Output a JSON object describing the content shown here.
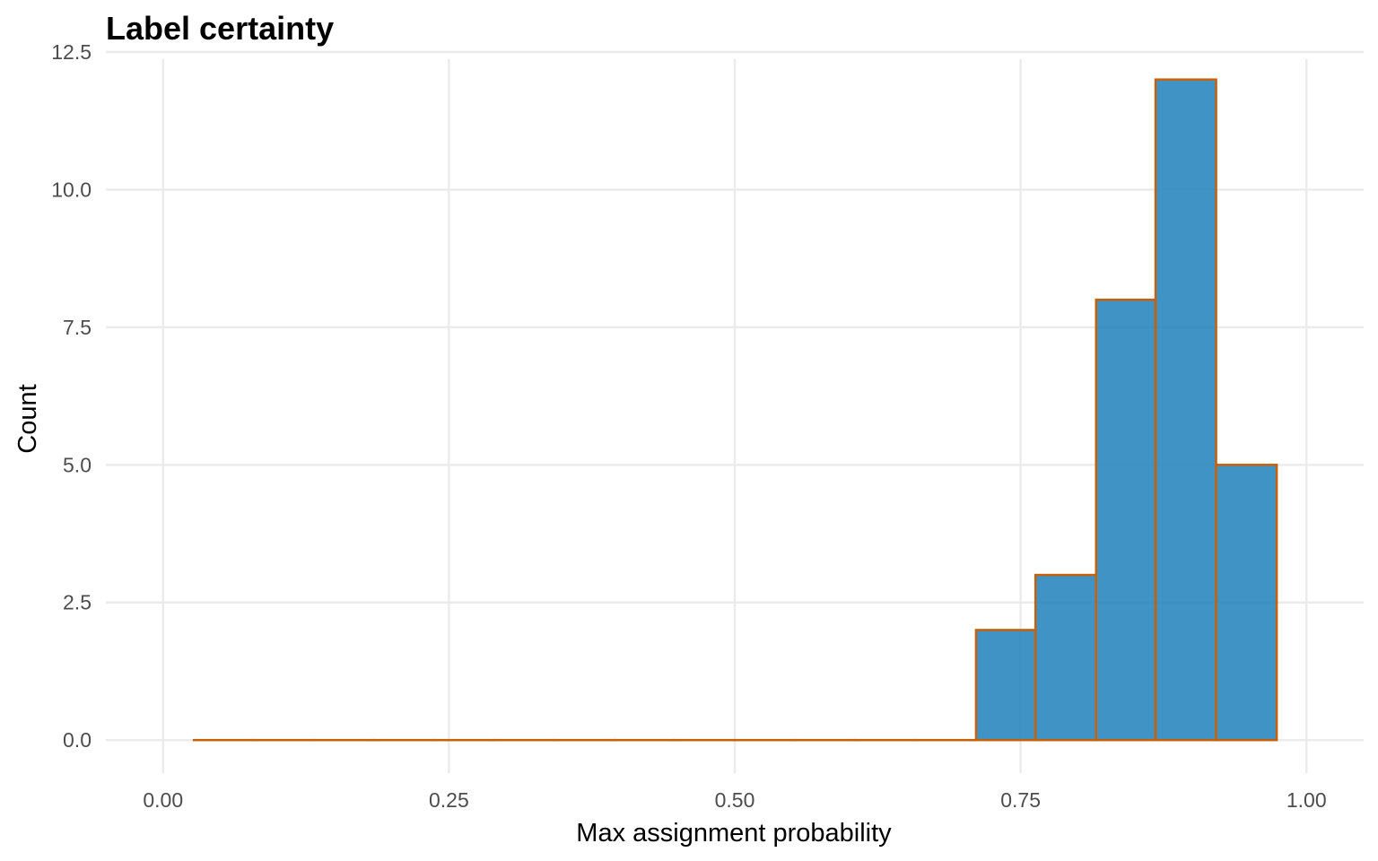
{
  "chart_data": {
    "type": "bar",
    "title": "Label certainty",
    "xlabel": "Max assignment probability",
    "ylabel": "Count",
    "xlim": [
      -0.05,
      1.05
    ],
    "ylim": [
      -0.6,
      12.5
    ],
    "x_ticks": [
      0,
      0.25,
      0.5,
      0.75,
      1
    ],
    "x_tick_labels": [
      "0.00",
      "0.25",
      "0.50",
      "0.75",
      "1.00"
    ],
    "y_ticks": [
      0,
      2.5,
      5,
      7.5,
      10,
      12.5
    ],
    "y_tick_labels": [
      "0.0",
      "2.5",
      "5.0",
      "7.5",
      "10.0",
      "12.5"
    ],
    "grid": true,
    "bin_width": 0.0526,
    "bins": [
      {
        "x0": 0.027,
        "x1": 0.079,
        "count": 0
      },
      {
        "x0": 0.079,
        "x1": 0.132,
        "count": 0
      },
      {
        "x0": 0.132,
        "x1": 0.184,
        "count": 0
      },
      {
        "x0": 0.184,
        "x1": 0.237,
        "count": 0
      },
      {
        "x0": 0.237,
        "x1": 0.29,
        "count": 0
      },
      {
        "x0": 0.29,
        "x1": 0.342,
        "count": 0
      },
      {
        "x0": 0.342,
        "x1": 0.395,
        "count": 0
      },
      {
        "x0": 0.395,
        "x1": 0.447,
        "count": 0
      },
      {
        "x0": 0.447,
        "x1": 0.5,
        "count": 0
      },
      {
        "x0": 0.5,
        "x1": 0.553,
        "count": 0
      },
      {
        "x0": 0.553,
        "x1": 0.605,
        "count": 0
      },
      {
        "x0": 0.605,
        "x1": 0.658,
        "count": 0
      },
      {
        "x0": 0.658,
        "x1": 0.711,
        "count": 0
      },
      {
        "x0": 0.711,
        "x1": 0.763,
        "count": 2
      },
      {
        "x0": 0.763,
        "x1": 0.816,
        "count": 3
      },
      {
        "x0": 0.816,
        "x1": 0.868,
        "count": 8
      },
      {
        "x0": 0.868,
        "x1": 0.921,
        "count": 12
      },
      {
        "x0": 0.921,
        "x1": 0.974,
        "count": 5
      }
    ],
    "colors": {
      "fill": "#2b88bf",
      "outline": "#c8600a",
      "grid": "#ebebeb"
    }
  }
}
